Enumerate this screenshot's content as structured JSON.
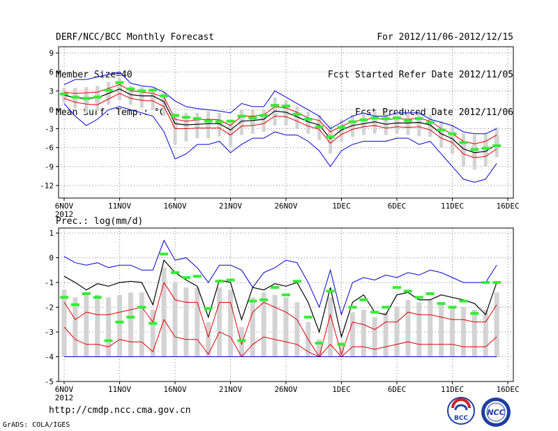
{
  "header": {
    "left": [
      "DERF/NCC/BCC Monthly Forecast",
      "Member Size=40",
      "Mean Surf. Temp.: °C"
    ],
    "right": [
      "For 2012/11/06-2012/12/15",
      "Fcst Started Refer Date 2012/11/05",
      "Fcst Produced Date 2012/11/06"
    ]
  },
  "footer": {
    "url": "http://cmdp.ncc.cma.gov.cn",
    "grads": "GrADS: COLA/IGES",
    "logo_left_text": "BCC",
    "logo_right_text": "NCC"
  },
  "colors": {
    "ensemble_mean": "#000000",
    "inner_band": "#e00000",
    "outer_band": "#0000cc",
    "member_box": "#d3d3d3",
    "observed_marker": "#33ee33",
    "grid": "#808080"
  },
  "chart_data": [
    {
      "type": "line",
      "title": "Mean Surf. Temp.: °C",
      "ylabel": "°C",
      "ylim": [
        -14,
        10
      ],
      "yticks": [
        9,
        6,
        3,
        0,
        -3,
        -6,
        -9,
        -12
      ],
      "x_tick_positions": [
        0,
        5,
        10,
        15,
        20,
        25,
        30,
        35,
        40
      ],
      "x_tick_labels": [
        "6NOV",
        "11NOV",
        "16NOV",
        "21NOV",
        "26NOV",
        "1DEC",
        "6DEC",
        "11DEC",
        "16DEC"
      ],
      "x_first_year": "2012",
      "x_range": [
        -0.5,
        40.5
      ],
      "x": [
        0,
        1,
        2,
        3,
        4,
        5,
        6,
        7,
        8,
        9,
        10,
        11,
        12,
        13,
        14,
        15,
        16,
        17,
        18,
        19,
        20,
        21,
        22,
        23,
        24,
        25,
        26,
        27,
        28,
        29,
        30,
        31,
        32,
        33,
        34,
        35,
        36,
        37,
        38,
        39
      ],
      "series": [
        {
          "name": "upper-outer",
          "color": "blue",
          "values": [
            4.0,
            4.8,
            4.8,
            5.2,
            5.6,
            6.0,
            4.2,
            3.8,
            3.6,
            2.8,
            1.4,
            0.5,
            0.2,
            0.0,
            -0.2,
            -0.5,
            1.0,
            0.5,
            0.5,
            3.0,
            2.0,
            1.0,
            0.0,
            -1.0,
            -3.0,
            -2.0,
            -1.0,
            -0.5,
            -1.0,
            -1.0,
            -0.5,
            -0.5,
            -0.5,
            -1.5,
            -2.0,
            -2.5,
            -3.5,
            -3.8,
            -3.8,
            -3.0
          ]
        },
        {
          "name": "upper-inner",
          "color": "red",
          "values": [
            2.8,
            2.6,
            2.7,
            2.8,
            3.4,
            4.0,
            3.0,
            2.8,
            2.6,
            2.0,
            -1.5,
            -1.8,
            -1.6,
            -1.5,
            -1.6,
            -2.5,
            -1.0,
            -1.0,
            -0.8,
            0.5,
            0.3,
            -0.4,
            -1.3,
            -1.7,
            -3.5,
            -2.6,
            -1.9,
            -1.6,
            -1.3,
            -1.6,
            -1.4,
            -1.5,
            -1.3,
            -1.8,
            -3.0,
            -3.8,
            -5.0,
            -5.4,
            -5.0,
            -4.0
          ]
        },
        {
          "name": "mean",
          "color": "black",
          "values": [
            2.3,
            1.9,
            1.8,
            1.9,
            2.6,
            3.3,
            2.4,
            2.2,
            2.2,
            1.3,
            -2.2,
            -2.4,
            -2.3,
            -2.2,
            -2.2,
            -3.2,
            -1.8,
            -1.7,
            -1.5,
            -0.2,
            -0.4,
            -1.1,
            -1.9,
            -2.4,
            -4.6,
            -3.2,
            -2.5,
            -2.2,
            -1.9,
            -2.3,
            -2.1,
            -2.1,
            -2.0,
            -2.4,
            -3.8,
            -4.6,
            -6.2,
            -6.8,
            -6.6,
            -5.5
          ]
        },
        {
          "name": "lower-inner",
          "color": "red",
          "values": [
            1.8,
            1.2,
            0.9,
            0.8,
            1.7,
            2.6,
            1.8,
            1.5,
            1.4,
            0.5,
            -3.0,
            -3.0,
            -2.9,
            -2.9,
            -2.9,
            -4.0,
            -2.6,
            -2.5,
            -2.2,
            -1.0,
            -1.1,
            -1.8,
            -2.6,
            -3.1,
            -5.3,
            -3.9,
            -3.1,
            -2.7,
            -2.5,
            -2.9,
            -2.7,
            -2.8,
            -2.7,
            -3.2,
            -4.5,
            -5.2,
            -7.0,
            -7.6,
            -7.4,
            -6.2
          ]
        },
        {
          "name": "lower-outer",
          "color": "blue",
          "values": [
            1.0,
            -1.0,
            -2.5,
            -1.5,
            0.0,
            0.5,
            0.0,
            -0.5,
            -1.0,
            -3.5,
            -7.8,
            -7.0,
            -5.5,
            -5.5,
            -5.0,
            -6.8,
            -5.5,
            -4.5,
            -4.5,
            -3.5,
            -4.0,
            -4.0,
            -5.0,
            -6.5,
            -9.0,
            -6.5,
            -5.5,
            -5.0,
            -5.0,
            -5.0,
            -4.5,
            -4.5,
            -5.5,
            -5.0,
            -7.0,
            -9.0,
            -11.0,
            -11.5,
            -11.0,
            -8.5
          ]
        },
        {
          "name": "observed",
          "color": "green",
          "values": [
            2.5,
            2.0,
            1.8,
            2.0,
            3.1,
            4.3,
            3.3,
            3.0,
            3.1,
            2.2,
            -0.9,
            -1.2,
            -1.4,
            -1.8,
            -1.9,
            -1.8,
            -1.0,
            -1.3,
            -0.9,
            0.7,
            0.6,
            -0.7,
            -1.5,
            -2.7,
            -4.3,
            -2.8,
            -1.9,
            -1.6,
            -1.3,
            -1.4,
            -1.3,
            -1.7,
            -1.4,
            -2.0,
            -3.2,
            -3.8,
            -5.2,
            -6.3,
            -6.1,
            -5.7
          ]
        }
      ],
      "boxes": {
        "p25": [
          1.8,
          1.2,
          1.0,
          1.0,
          1.8,
          2.6,
          1.9,
          1.6,
          1.5,
          0.6,
          -3.0,
          -3.0,
          -3.0,
          -2.9,
          -2.9,
          -4.0,
          -2.6,
          -2.5,
          -2.2,
          -1.0,
          -1.1,
          -1.8,
          -2.6,
          -3.1,
          -5.3,
          -3.9,
          -3.1,
          -2.7,
          -2.5,
          -2.9,
          -2.7,
          -2.8,
          -2.7,
          -3.2,
          -4.5,
          -5.2,
          -7.0,
          -7.6,
          -7.4,
          -6.2
        ],
        "p75": [
          2.8,
          2.6,
          2.7,
          2.8,
          3.4,
          4.0,
          3.0,
          2.8,
          2.6,
          2.0,
          -1.5,
          -1.8,
          -1.6,
          -1.5,
          -1.6,
          -2.5,
          -1.0,
          -1.0,
          -0.8,
          0.5,
          0.3,
          -0.4,
          -1.3,
          -1.7,
          -3.5,
          -2.6,
          -1.9,
          -1.6,
          -1.3,
          -1.6,
          -1.4,
          -1.5,
          -1.3,
          -1.8,
          -3.0,
          -3.8,
          -5.0,
          -5.4,
          -5.0,
          -4.0
        ],
        "min": [
          1.2,
          0.2,
          -0.5,
          -0.2,
          0.8,
          1.5,
          0.8,
          0.3,
          0.0,
          -1.0,
          -5.5,
          -5.0,
          -4.5,
          -4.5,
          -4.2,
          -5.8,
          -4.0,
          -3.8,
          -3.5,
          -2.5,
          -2.5,
          -3.0,
          -3.8,
          -4.8,
          -7.0,
          -5.0,
          -4.3,
          -4.0,
          -3.8,
          -4.0,
          -3.8,
          -4.0,
          -4.2,
          -4.3,
          -6.0,
          -7.0,
          -9.0,
          -9.5,
          -9.0,
          -7.5
        ],
        "max": [
          3.5,
          3.5,
          3.6,
          3.8,
          4.4,
          5.0,
          3.8,
          3.6,
          3.4,
          2.8,
          -0.5,
          -0.5,
          -0.5,
          -0.2,
          -0.5,
          -1.5,
          0.0,
          0.0,
          0.0,
          2.0,
          1.5,
          0.5,
          -0.3,
          -0.8,
          -2.5,
          -1.5,
          -0.8,
          -0.5,
          -0.3,
          -0.5,
          -0.3,
          -0.3,
          -0.3,
          -0.8,
          -1.8,
          -2.5,
          -3.8,
          -4.0,
          -3.8,
          -2.8
        ]
      }
    },
    {
      "type": "line",
      "title": "Prec.: log(mm/d)",
      "ylabel": "log(mm/d)",
      "ylim": [
        -5,
        1.2
      ],
      "yticks": [
        1,
        0,
        -1,
        -2,
        -3,
        -4,
        -5
      ],
      "x_tick_positions": [
        0,
        5,
        10,
        15,
        20,
        25,
        30,
        35,
        40
      ],
      "x_tick_labels": [
        "6NOV",
        "11NOV",
        "16NOV",
        "21NOV",
        "26NOV",
        "1DEC",
        "6DEC",
        "11DEC",
        "16DEC"
      ],
      "x_first_year": "2012",
      "x_range": [
        -0.5,
        40.5
      ],
      "x": [
        0,
        1,
        2,
        3,
        4,
        5,
        6,
        7,
        8,
        9,
        10,
        11,
        12,
        13,
        14,
        15,
        16,
        17,
        18,
        19,
        20,
        21,
        22,
        23,
        24,
        25,
        26,
        27,
        28,
        29,
        30,
        31,
        32,
        33,
        34,
        35,
        36,
        37,
        38,
        39
      ],
      "series": [
        {
          "name": "upper-outer",
          "color": "blue",
          "values": [
            0.05,
            -0.2,
            -0.3,
            -0.2,
            -0.4,
            -0.3,
            -0.3,
            -0.5,
            -0.5,
            0.7,
            -0.1,
            0.0,
            -0.4,
            -1.0,
            -0.3,
            -0.3,
            -0.5,
            -1.2,
            -0.6,
            -0.4,
            -0.1,
            -0.2,
            -1.0,
            -2.0,
            -0.5,
            -2.3,
            -1.0,
            -0.8,
            -0.9,
            -0.7,
            -0.8,
            -0.6,
            -0.7,
            -0.5,
            -0.6,
            -0.8,
            -1.0,
            -1.0,
            -1.0,
            -0.3
          ]
        },
        {
          "name": "upper-inner",
          "color": "red",
          "values": [
            -1.8,
            -2.5,
            -2.2,
            -2.3,
            -2.3,
            -2.2,
            -2.1,
            -2.0,
            -2.6,
            -1.0,
            -1.7,
            -1.8,
            -1.8,
            -3.2,
            -1.8,
            -1.8,
            -3.5,
            -2.2,
            -1.8,
            -2.0,
            -2.2,
            -2.5,
            -3.3,
            -4.0,
            -2.3,
            -3.9,
            -2.6,
            -2.7,
            -2.9,
            -2.6,
            -2.6,
            -2.2,
            -2.3,
            -2.3,
            -2.4,
            -2.5,
            -2.5,
            -2.6,
            -2.6,
            -1.9
          ]
        },
        {
          "name": "mean",
          "color": "black",
          "values": [
            -0.75,
            -1.0,
            -1.3,
            -1.05,
            -1.15,
            -1.0,
            -0.95,
            -1.0,
            -1.9,
            -0.1,
            -0.6,
            -0.9,
            -1.15,
            -2.4,
            -0.9,
            -1.0,
            -2.5,
            -1.2,
            -1.3,
            -1.05,
            -1.15,
            -1.0,
            -1.8,
            -3.0,
            -1.2,
            -3.2,
            -1.8,
            -1.5,
            -2.2,
            -2.3,
            -1.5,
            -1.4,
            -1.7,
            -1.7,
            -1.5,
            -1.6,
            -1.7,
            -1.85,
            -2.3,
            -1.0
          ]
        },
        {
          "name": "lower-inner",
          "color": "red",
          "values": [
            -2.8,
            -3.3,
            -3.5,
            -3.5,
            -3.6,
            -3.3,
            -3.4,
            -3.4,
            -3.8,
            -2.5,
            -3.2,
            -3.3,
            -3.3,
            -3.9,
            -3.0,
            -3.2,
            -4.0,
            -3.5,
            -3.2,
            -3.3,
            -3.4,
            -3.5,
            -3.8,
            -4.0,
            -3.5,
            -4.0,
            -3.6,
            -3.6,
            -3.7,
            -3.6,
            -3.5,
            -3.4,
            -3.5,
            -3.5,
            -3.5,
            -3.5,
            -3.6,
            -3.6,
            -3.6,
            -3.2
          ]
        },
        {
          "name": "lower-outer",
          "color": "blue",
          "values": [
            -4,
            -4,
            -4,
            -4,
            -4,
            -4,
            -4,
            -4,
            -4,
            -4,
            -4,
            -4,
            -4,
            -4,
            -4,
            -4,
            -4,
            -4,
            -4,
            -4,
            -4,
            -4,
            -4,
            -4,
            -4,
            -4,
            -4,
            -4,
            -4,
            -4,
            -4,
            -4,
            -4,
            -4,
            -4,
            -4,
            -4,
            -4,
            -4,
            -4
          ]
        },
        {
          "name": "observed",
          "color": "green",
          "values": [
            -1.6,
            -1.9,
            -1.45,
            -1.6,
            -3.35,
            -2.6,
            -2.4,
            -2.0,
            -2.65,
            0.15,
            -0.6,
            -0.8,
            -0.75,
            -2.05,
            -0.95,
            -0.9,
            -3.35,
            -1.75,
            -1.7,
            -1.2,
            -1.5,
            -0.95,
            -2.4,
            -3.45,
            -1.35,
            -3.5,
            -2.0,
            -1.7,
            -2.2,
            -2.0,
            -1.2,
            -1.35,
            -1.6,
            -1.45,
            -1.85,
            -2.0,
            -1.75,
            -2.25,
            -1.0,
            -1.0
          ]
        }
      ],
      "boxes": {
        "p25": [
          -2.8,
          -3.3,
          -3.5,
          -3.5,
          -3.6,
          -3.3,
          -3.4,
          -3.4,
          -3.8,
          -2.5,
          -3.2,
          -3.3,
          -3.3,
          -3.9,
          -3.0,
          -3.2,
          -4.0,
          -3.5,
          -3.2,
          -3.3,
          -3.4,
          -3.5,
          -3.8,
          -4.0,
          -3.5,
          -4.0,
          -3.6,
          -3.6,
          -3.7,
          -3.6,
          -3.5,
          -3.4,
          -3.5,
          -3.5,
          -3.5,
          -3.5,
          -3.6,
          -3.6,
          -3.6,
          -3.2
        ],
        "p75": [
          -1.3,
          -1.6,
          -1.5,
          -1.5,
          -1.6,
          -1.5,
          -1.4,
          -1.4,
          -2.1,
          -0.4,
          -1.0,
          -1.2,
          -1.2,
          -2.6,
          -1.2,
          -1.3,
          -2.8,
          -1.6,
          -1.4,
          -1.5,
          -1.6,
          -1.8,
          -2.6,
          -3.3,
          -1.6,
          -3.4,
          -2.2,
          -2.1,
          -2.4,
          -2.2,
          -2.0,
          -1.7,
          -1.8,
          -1.7,
          -1.9,
          -2.0,
          -2.0,
          -2.1,
          -2.1,
          -1.4
        ]
      },
      "box_floor": -4
    }
  ]
}
